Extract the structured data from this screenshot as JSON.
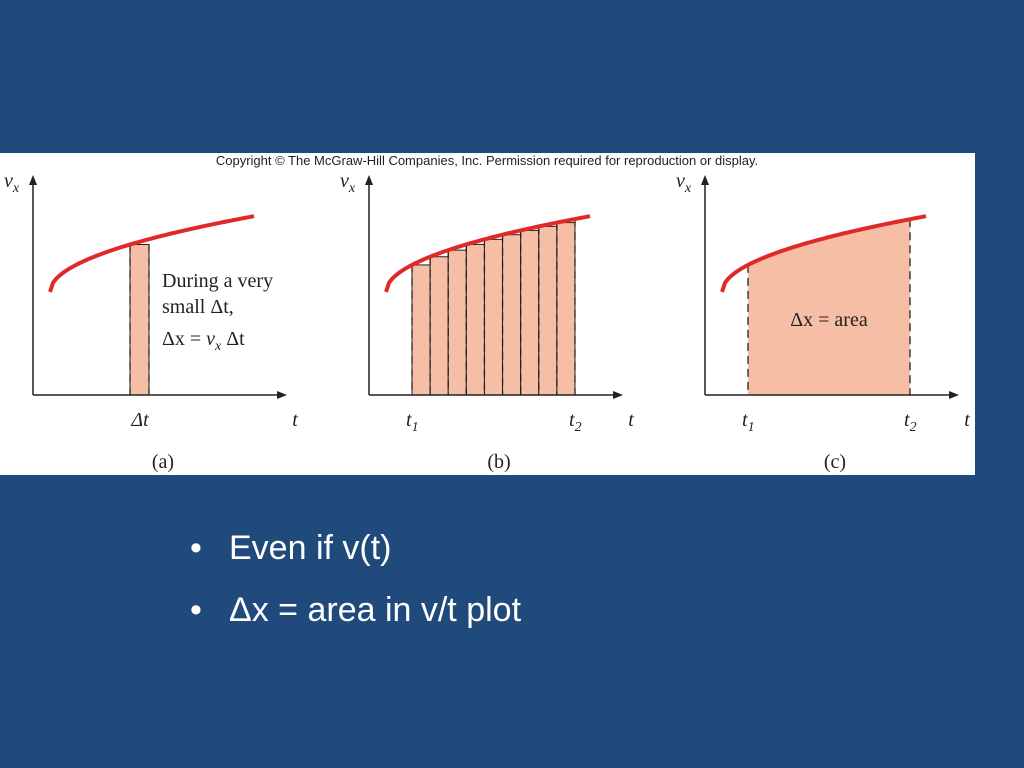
{
  "figure": {
    "copyright": "Copyright © The McGraw-Hill Companies, Inc. Permission required for reproduction or display.",
    "panels": [
      {
        "label": "(a)",
        "y_axis": {
          "main": "v",
          "sub": "x"
        },
        "x_axis": "t",
        "tick": "Δt",
        "note": [
          "During a very",
          "small Δt,",
          {
            "main": "Δx = ",
            "var": "v",
            "sub": "x",
            "after": " Δt"
          }
        ]
      },
      {
        "label": "(b)",
        "y_axis": {
          "main": "v",
          "sub": "x"
        },
        "x_axis": "t",
        "t1": {
          "main": "t",
          "sub": "1"
        },
        "t2": {
          "main": "t",
          "sub": "2"
        }
      },
      {
        "label": "(c)",
        "y_axis": {
          "main": "v",
          "sub": "x"
        },
        "x_axis": "t",
        "t1": {
          "main": "t",
          "sub": "1"
        },
        "t2": {
          "main": "t",
          "sub": "2"
        },
        "note": "Δx = area"
      }
    ]
  },
  "bullets": [
    "Even if v(t)",
    "Δx = area in v/t plot"
  ]
}
